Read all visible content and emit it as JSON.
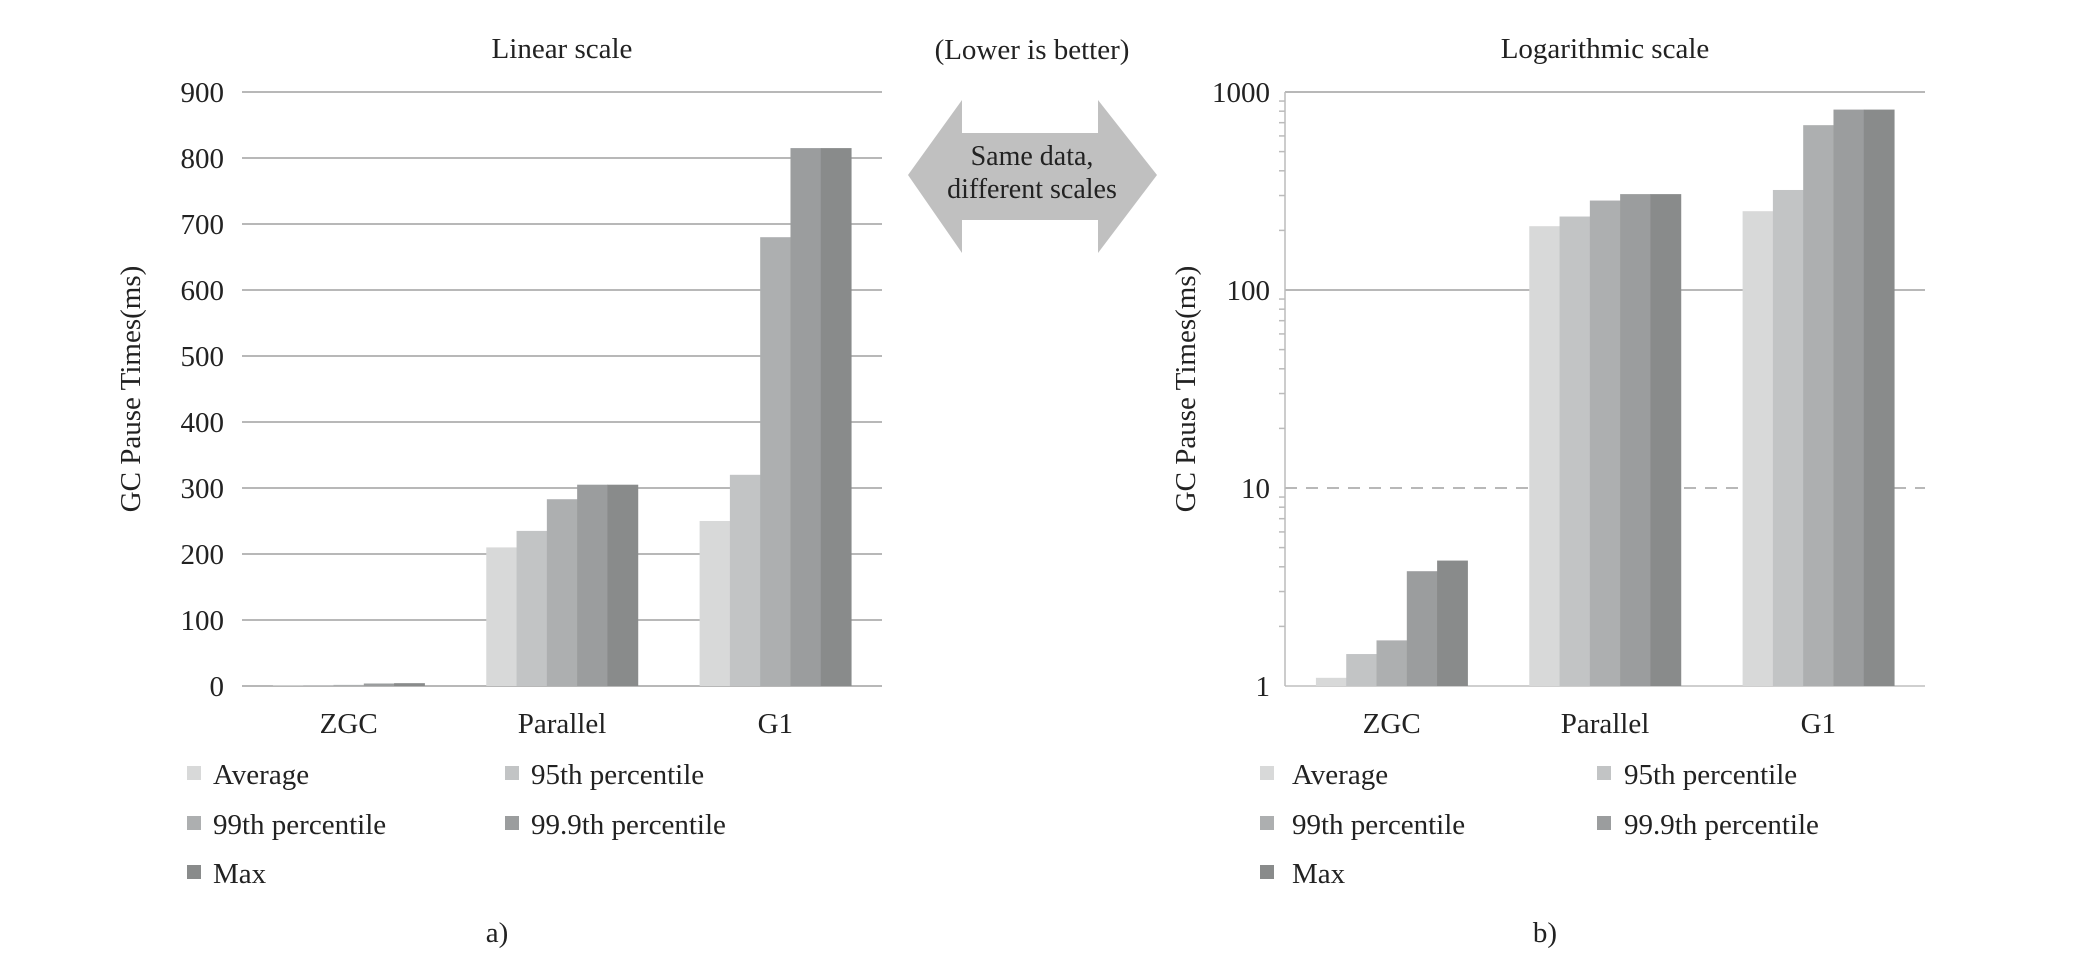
{
  "annotation": {
    "note": "(Lower is better)",
    "arrow_line1": "Same data,",
    "arrow_line2": "different scales"
  },
  "series_colors": [
    "#d8d9d9",
    "#c2c4c5",
    "#adafb0",
    "#9b9d9e",
    "#898b8b"
  ],
  "chart_data": [
    {
      "type": "bar",
      "title": "Linear scale",
      "ylabel": "GC Pause Times(ms)",
      "xlabel": "",
      "scale": "linear",
      "ylim": [
        0,
        900
      ],
      "yticks": [
        0,
        100,
        200,
        300,
        400,
        500,
        600,
        700,
        800,
        900
      ],
      "ytick_labels": [
        "0",
        "100",
        "200",
        "300",
        "400",
        "500",
        "600",
        "700",
        "800",
        "900"
      ],
      "grid": true,
      "categories": [
        "ZGC",
        "Parallel",
        "G1"
      ],
      "series": [
        {
          "name": "Average",
          "values": [
            1.1,
            210,
            250
          ]
        },
        {
          "name": "95th percentile",
          "values": [
            1.45,
            235,
            320
          ]
        },
        {
          "name": "99th percentile",
          "values": [
            1.7,
            283,
            680
          ]
        },
        {
          "name": "99.9th percentile",
          "values": [
            3.8,
            305,
            815
          ]
        },
        {
          "name": "Max",
          "values": [
            4.3,
            305,
            815
          ]
        }
      ],
      "legend_position": "bottom",
      "caption": "a)"
    },
    {
      "type": "bar",
      "title": "Logarithmic scale",
      "ylabel": "GC Pause Times(ms)",
      "xlabel": "",
      "scale": "log",
      "ylim": [
        1,
        1000
      ],
      "yticks": [
        1,
        10,
        100,
        1000
      ],
      "ytick_labels": [
        "1",
        "10",
        "100",
        "1000"
      ],
      "grid": true,
      "categories": [
        "ZGC",
        "Parallel",
        "G1"
      ],
      "series": [
        {
          "name": "Average",
          "values": [
            1.1,
            210,
            250
          ]
        },
        {
          "name": "95th percentile",
          "values": [
            1.45,
            235,
            320
          ]
        },
        {
          "name": "99th percentile",
          "values": [
            1.7,
            283,
            680
          ]
        },
        {
          "name": "99.9th percentile",
          "values": [
            3.8,
            305,
            815
          ]
        },
        {
          "name": "Max",
          "values": [
            4.3,
            305,
            815
          ]
        }
      ],
      "legend_position": "bottom",
      "caption": "b)"
    }
  ]
}
